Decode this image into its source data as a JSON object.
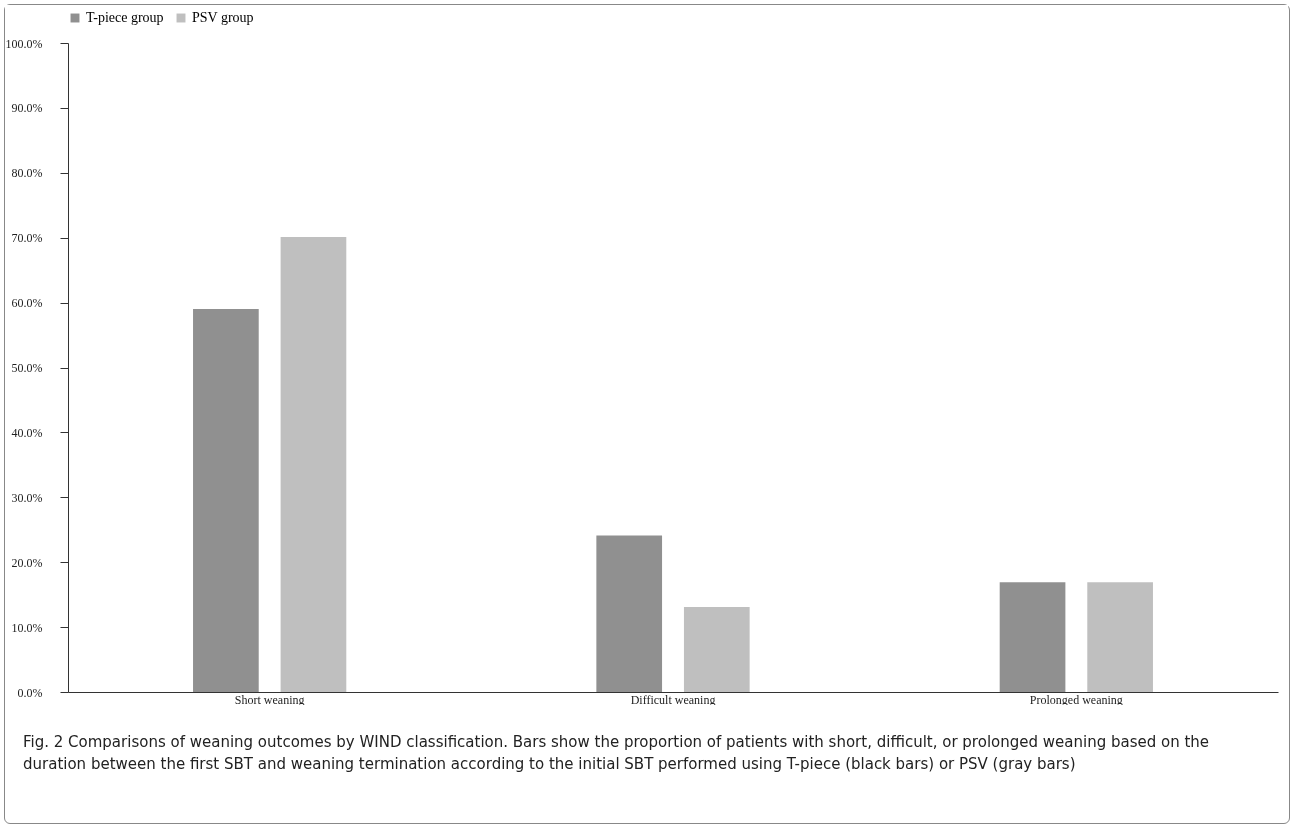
{
  "chart_data": {
    "type": "bar",
    "categories": [
      "Short weaning",
      "Difficult weaning",
      "Prolonged weaning"
    ],
    "series": [
      {
        "name": "T-piece group",
        "color": "#909090",
        "values": [
          59.0,
          24.1,
          16.9
        ]
      },
      {
        "name": "PSV group",
        "color": "#bfbfbf",
        "values": [
          70.1,
          13.1,
          16.9
        ]
      }
    ],
    "ylim": [
      0,
      100
    ],
    "yticks": [
      {
        "value": 0,
        "label": "0.0%"
      },
      {
        "value": 10,
        "label": "10.0%"
      },
      {
        "value": 20,
        "label": "20.0%"
      },
      {
        "value": 30,
        "label": "30.0%"
      },
      {
        "value": 40,
        "label": "40.0%"
      },
      {
        "value": 50,
        "label": "50.0%"
      },
      {
        "value": 60,
        "label": "60.0%"
      },
      {
        "value": 70,
        "label": "70.0%"
      },
      {
        "value": 80,
        "label": "80.0%"
      },
      {
        "value": 90,
        "label": "90.0%"
      },
      {
        "value": 100,
        "label": "100.0%"
      }
    ],
    "grid": false,
    "legend": "top",
    "annotations": [
      "Fig. 2  Comparisons of weaning outcomes by WIND classification. Bars show the proportion of patients with short, difficult, or prolonged weaning based on the duration between the first SBT and weaning termination according to the initial SBT performed using T-piece (black bars) or PSV (gray bars)"
    ]
  }
}
